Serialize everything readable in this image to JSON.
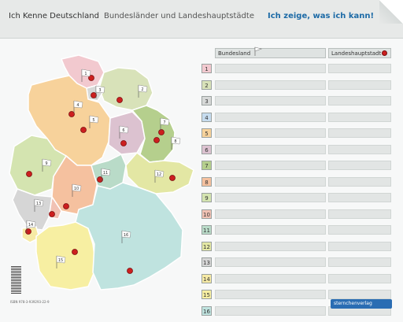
{
  "header": {
    "title": "Ich Kenne Deutschland",
    "subtitle": "Bundesländer und Landeshauptstädte",
    "right": "Ich zeige, was ich kann!"
  },
  "table": {
    "col_state": "Bundesland",
    "col_capital": "Landeshauptstadt",
    "rows": [
      {
        "num": "1",
        "color": "#f2c9cf"
      },
      {
        "num": "2",
        "color": "#d8e2b9"
      },
      {
        "num": "3",
        "color": "#d7d9d8"
      },
      {
        "num": "4",
        "color": "#c6dcef"
      },
      {
        "num": "5",
        "color": "#f7d29b"
      },
      {
        "num": "6",
        "color": "#dcc2d0"
      },
      {
        "num": "7",
        "color": "#b5cf8d"
      },
      {
        "num": "8",
        "color": "#f5c19f"
      },
      {
        "num": "9",
        "color": "#d4e4b0"
      },
      {
        "num": "10",
        "color": "#f1c2b4"
      },
      {
        "num": "11",
        "color": "#b9dbc8"
      },
      {
        "num": "12",
        "color": "#e3e7a4"
      },
      {
        "num": "13",
        "color": "#d6d6d6"
      },
      {
        "num": "14",
        "color": "#f6eaa5"
      },
      {
        "num": "15",
        "color": "#f7efa2"
      },
      {
        "num": "16",
        "color": "#bfe3df"
      }
    ]
  },
  "map": {
    "flags": [
      "1",
      "2",
      "3",
      "4",
      "5",
      "6",
      "7",
      "8",
      "9",
      "10",
      "11",
      "12",
      "13",
      "14",
      "15",
      "16"
    ]
  },
  "footer": {
    "isbn": "ISBN 978-3-939293-22-9",
    "logo": "sternchenverlag"
  }
}
